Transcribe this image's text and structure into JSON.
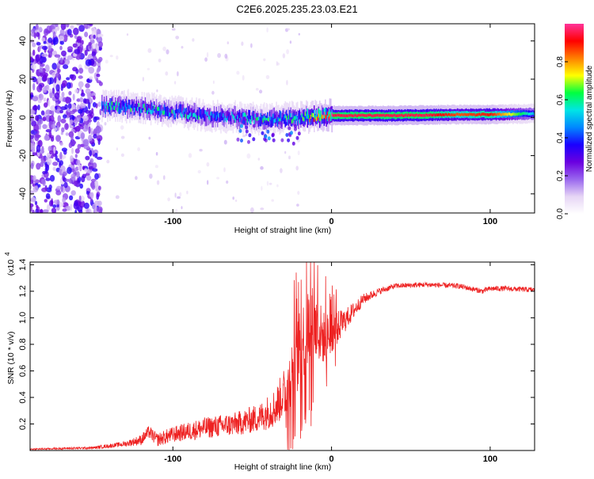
{
  "figure_title": "C2E6.2025.235.23.03.E21",
  "chart_data": [
    {
      "type": "heatmap",
      "title": "C2E6.2025.235.23.03.E21",
      "xlabel": "Height of straight line (km)",
      "ylabel": "Frequency (Hz)",
      "xlim": [
        -190,
        128
      ],
      "ylim": [
        -50,
        49
      ],
      "xticks": [
        -100,
        0,
        100
      ],
      "xtick_labels": [
        "-100",
        "0",
        "100"
      ],
      "yticks": [
        -40,
        -20,
        0,
        20,
        40
      ],
      "ytick_labels": [
        "-40",
        "-20",
        "0",
        "20",
        "40"
      ],
      "colorbar": {
        "label": "Normalized spectral amplitude",
        "range": [
          0,
          1
        ],
        "ticks": [
          0.0,
          0.2,
          0.4,
          0.6,
          0.8
        ],
        "tick_labels": [
          "0.0",
          "0.2",
          "0.4",
          "0.6",
          "0.8"
        ],
        "colors": [
          "#ffffff",
          "#e6d5f5",
          "#9966ee",
          "#6a00e0",
          "#1a00ff",
          "#0088ff",
          "#00e5e5",
          "#00ff40",
          "#ffff00",
          "#ff8000",
          "#ff0000",
          "#ff3399"
        ]
      },
      "features": {
        "noise_region_x": [
          -190,
          -145
        ],
        "band_center_hz": [
          [
            -145,
            6
          ],
          [
            -120,
            5
          ],
          [
            -100,
            3
          ],
          [
            -80,
            1
          ],
          [
            -60,
            0
          ],
          [
            -40,
            -1
          ],
          [
            -20,
            0
          ],
          [
            0,
            1
          ],
          [
            40,
            1
          ],
          [
            80,
            1.5
          ],
          [
            100,
            1.5
          ],
          [
            128,
            2
          ]
        ],
        "band_peak_amplitude": [
          [
            -145,
            0.55
          ],
          [
            -100,
            0.55
          ],
          [
            -60,
            0.5
          ],
          [
            -25,
            0.6
          ],
          [
            -5,
            0.85
          ],
          [
            0,
            0.95
          ],
          [
            60,
            0.95
          ],
          [
            80,
            0.85
          ],
          [
            100,
            0.9
          ],
          [
            128,
            0.5
          ]
        ]
      }
    },
    {
      "type": "line",
      "xlabel": "Height of straight line (km)",
      "ylabel": "SNR (10 * v/v)",
      "yscale_label": "(x10",
      "yscale_exponent": "4",
      "xlim": [
        -190,
        128
      ],
      "ylim": [
        0,
        1.42
      ],
      "xticks": [
        -100,
        0,
        100
      ],
      "xtick_labels": [
        "-100",
        "0",
        "100"
      ],
      "yticks": [
        0.2,
        0.4,
        0.6,
        0.8,
        1.0,
        1.2,
        1.4
      ],
      "ytick_labels": [
        "0.2",
        "0.4",
        "0.6",
        "0.8",
        "1.0",
        "1.2",
        "1.4"
      ],
      "series": [
        {
          "name": "SNR",
          "color": "#ee2222",
          "envelope_x": [
            -190,
            -150,
            -130,
            -120,
            -115,
            -110,
            -100,
            -80,
            -60,
            -45,
            -35,
            -28,
            -22,
            -18,
            -16,
            -12,
            -8,
            -5,
            0,
            10,
            20,
            30,
            40,
            60,
            80,
            95,
            100,
            110,
            128
          ],
          "envelope_mean": [
            0.01,
            0.02,
            0.05,
            0.08,
            0.14,
            0.08,
            0.12,
            0.17,
            0.2,
            0.25,
            0.33,
            0.48,
            0.7,
            0.82,
            0.92,
            0.95,
            0.9,
            0.85,
            0.88,
            1.0,
            1.14,
            1.2,
            1.24,
            1.25,
            1.24,
            1.2,
            1.22,
            1.22,
            1.21
          ],
          "envelope_noise": [
            0.005,
            0.01,
            0.02,
            0.04,
            0.05,
            0.05,
            0.06,
            0.08,
            0.09,
            0.11,
            0.15,
            0.2,
            0.28,
            0.3,
            0.32,
            0.3,
            0.25,
            0.2,
            0.15,
            0.08,
            0.04,
            0.025,
            0.02,
            0.02,
            0.02,
            0.02,
            0.02,
            0.02,
            0.02
          ]
        }
      ]
    }
  ]
}
